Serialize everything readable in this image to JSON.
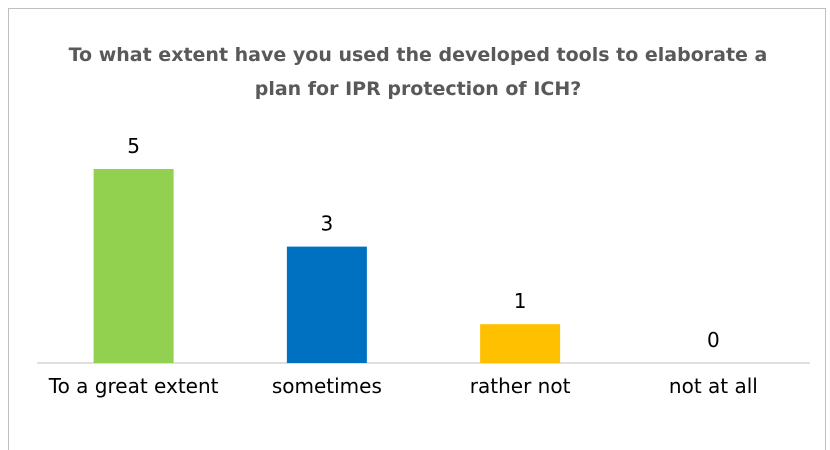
{
  "chart_data": {
    "type": "bar",
    "title": "To what extent have you used the developed tools to elaborate a plan for IPR protection of ICH?",
    "categories": [
      "To a great extent",
      "sometimes",
      "rather not",
      "not at all"
    ],
    "values": [
      5,
      3,
      1,
      0
    ],
    "colors": [
      "#92d050",
      "#0070c0",
      "#ffc000",
      "#a5a5a5"
    ]
  }
}
